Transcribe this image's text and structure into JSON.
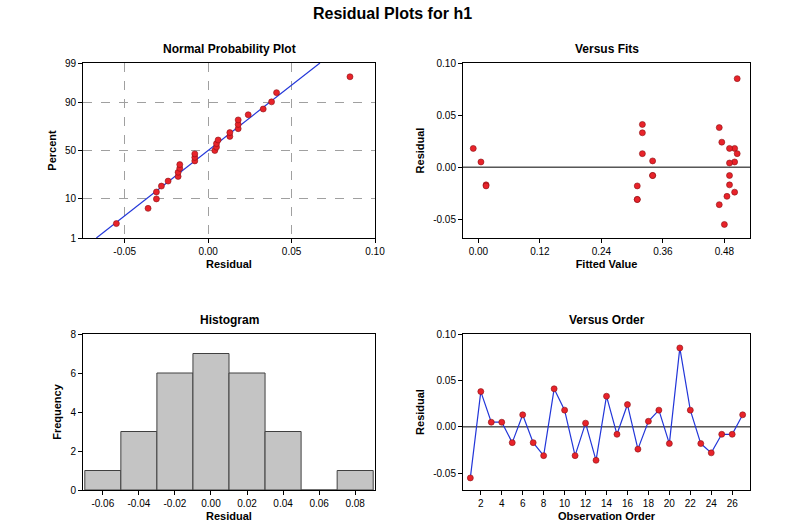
{
  "title": "Residual Plots for h1",
  "chart_data": [
    {
      "type": "probability",
      "title": "Normal Probability Plot",
      "x_label": "Residual",
      "y_label": "Percent",
      "x": [
        -0.055,
        -0.036,
        -0.031,
        -0.031,
        -0.028,
        -0.024,
        -0.018,
        -0.018,
        -0.017,
        -0.017,
        -0.008,
        -0.008,
        -0.008,
        0.004,
        0.005,
        0.005,
        0.006,
        0.013,
        0.013,
        0.018,
        0.018,
        0.018,
        0.024,
        0.033,
        0.038,
        0.041,
        0.085
      ],
      "values": [
        2.6,
        6.2,
        9.9,
        13.5,
        17.2,
        20.8,
        24.5,
        28.1,
        31.8,
        35.4,
        39.1,
        42.7,
        46.4,
        50.0,
        53.6,
        57.3,
        61.0,
        64.6,
        68.3,
        71.9,
        75.6,
        79.2,
        82.9,
        86.5,
        90.2,
        93.8,
        97.5
      ],
      "color": "#e8232a",
      "marker": "circle",
      "fit_line": {
        "x": [
          -0.067,
          0.067
        ],
        "values": [
          1,
          99
        ],
        "color": "#2236d9"
      },
      "xlim": [
        -0.075,
        0.1
      ],
      "xticks": [
        -0.05,
        {
          "value": 0,
          "label": "0.00"
        },
        0.05,
        {
          "value": 0.1,
          "label": "0.10"
        }
      ],
      "ylim": [
        1,
        99
      ],
      "yticks": [
        1,
        10,
        50,
        90,
        99
      ],
      "grid": true
    },
    {
      "type": "scatter",
      "title": "Versus Fits",
      "x_label": "Fitted Value",
      "y_label": "Residual",
      "x": [
        0.48,
        0.47,
        0.005,
        0.5,
        0.015,
        0.32,
        0.49,
        0.31,
        0.32,
        -0.01,
        0.31,
        0.49,
        0.47,
        0.32,
        0.34,
        0.475,
        0.5,
        0.34,
        0.5,
        0.31,
        0.505,
        0.49,
        0.015,
        0.485,
        0.34,
        0.49,
        0.505
      ],
      "values": [
        -0.055,
        0.038,
        0.005,
        0.005,
        -0.017,
        0.013,
        -0.017,
        -0.031,
        0.041,
        0.018,
        -0.031,
        0.004,
        -0.036,
        0.033,
        -0.008,
        0.024,
        -0.024,
        0.006,
        0.018,
        -0.018,
        0.085,
        0.018,
        -0.018,
        -0.028,
        -0.008,
        -0.008,
        0.013
      ],
      "color": "#e8232a",
      "marker": "circle",
      "reference_line": 0,
      "xlim": [
        -0.03,
        0.53
      ],
      "xticks": [
        {
          "value": 0,
          "label": "0.00"
        },
        0.12,
        0.24,
        0.36,
        0.48
      ],
      "ylim": [
        -0.068,
        0.1
      ],
      "yticks": [
        -0.05,
        {
          "value": 0,
          "label": "0.00"
        },
        0.05,
        {
          "value": 0.1,
          "label": "0.10"
        }
      ],
      "grid": false
    },
    {
      "type": "histogram",
      "title": "Histogram",
      "x_label": "Residual",
      "y_label": "Frequency",
      "bins": [
        -0.07,
        -0.05,
        -0.03,
        -0.01,
        0.01,
        0.03,
        0.05,
        0.07,
        0.09
      ],
      "values": [
        1,
        3,
        6,
        7,
        6,
        3,
        0,
        1
      ],
      "color": "#c4c4c4",
      "xlim": [
        -0.071,
        0.091
      ],
      "xticks": [
        -0.06,
        -0.04,
        -0.02,
        {
          "value": 0,
          "label": "0.00"
        },
        0.02,
        0.04,
        0.06,
        0.08
      ],
      "ylim": [
        0,
        8
      ],
      "yticks": [
        0,
        2,
        4,
        6,
        8
      ],
      "grid": false
    },
    {
      "type": "line",
      "title": "Versus Order",
      "x_label": "Observation Order",
      "y_label": "Residual",
      "x": [
        1,
        2,
        3,
        4,
        5,
        6,
        7,
        8,
        9,
        10,
        11,
        12,
        13,
        14,
        15,
        16,
        17,
        18,
        19,
        20,
        21,
        22,
        23,
        24,
        25,
        26,
        27
      ],
      "values": [
        -0.055,
        0.038,
        0.005,
        0.005,
        -0.017,
        0.013,
        -0.017,
        -0.031,
        0.041,
        0.018,
        -0.031,
        0.004,
        -0.036,
        0.033,
        -0.008,
        0.024,
        -0.024,
        0.006,
        0.018,
        -0.018,
        0.085,
        0.018,
        -0.018,
        -0.028,
        -0.008,
        -0.008,
        0.013
      ],
      "color": "#e8232a",
      "marker": "circle",
      "reference_line": 0,
      "xlim": [
        0.3,
        27.7
      ],
      "xticks": [
        2,
        4,
        6,
        8,
        10,
        12,
        14,
        16,
        18,
        20,
        22,
        24,
        26
      ],
      "ylim": [
        -0.068,
        0.1
      ],
      "yticks": [
        -0.05,
        {
          "value": 0,
          "label": "0.00"
        },
        0.05,
        {
          "value": 0.1,
          "label": "0.10"
        }
      ],
      "grid": false
    }
  ]
}
